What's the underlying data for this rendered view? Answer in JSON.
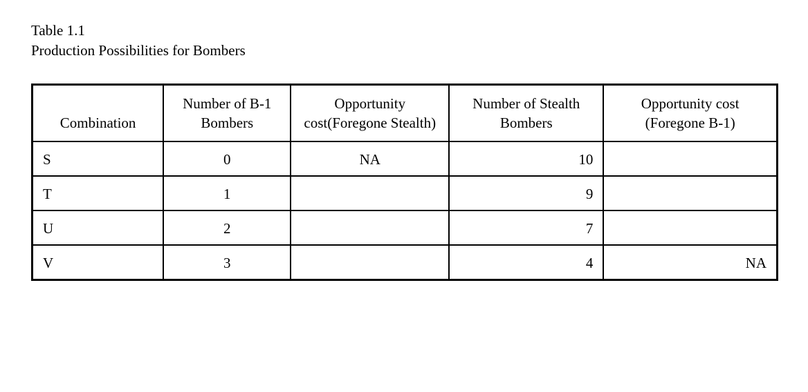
{
  "caption": {
    "line1": "Table 1.1",
    "line2": "Production Possibilities for Bombers"
  },
  "table": {
    "columns": [
      {
        "label": "Combination",
        "header_align": "center",
        "body_align": "left",
        "class": "col-combination"
      },
      {
        "label": "Number of B-1 Bombers",
        "header_align": "center",
        "body_align": "center",
        "class": "col-b1"
      },
      {
        "label": "Opportunity cost(Foregone Stealth)",
        "header_align": "center",
        "body_align": "center",
        "class": "col-opp-stealth"
      },
      {
        "label": "Number of Stealth Bombers",
        "header_align": "center",
        "body_align": "right",
        "class": "col-stealth"
      },
      {
        "label": "Opportunity cost (Foregone B-1)",
        "header_align": "center",
        "body_align": "right",
        "class": "col-opp-b1"
      }
    ],
    "rows": [
      [
        "S",
        "0",
        "NA",
        "10",
        ""
      ],
      [
        "T",
        "1",
        "",
        "9",
        ""
      ],
      [
        "U",
        "2",
        "",
        "7",
        ""
      ],
      [
        "V",
        "3",
        "",
        "4",
        "NA"
      ]
    ],
    "border_color": "#000000",
    "background_color": "#ffffff",
    "font_family": "Times New Roman",
    "font_size_pt": 16
  }
}
